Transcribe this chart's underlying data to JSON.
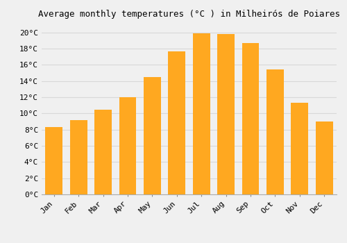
{
  "title": "Average monthly temperatures (°C ) in Milheirós de Poiares",
  "months": [
    "Jan",
    "Feb",
    "Mar",
    "Apr",
    "May",
    "Jun",
    "Jul",
    "Aug",
    "Sep",
    "Oct",
    "Nov",
    "Dec"
  ],
  "temperatures": [
    8.3,
    9.2,
    10.5,
    12.0,
    14.5,
    17.7,
    19.9,
    19.8,
    18.7,
    15.4,
    11.3,
    9.0
  ],
  "bar_color": "#FFA820",
  "ylim": [
    0,
    21
  ],
  "yticks": [
    0,
    2,
    4,
    6,
    8,
    10,
    12,
    14,
    16,
    18,
    20
  ],
  "background_color": "#f0f0f0",
  "grid_color": "#d8d8d8",
  "title_fontsize": 9,
  "tick_fontsize": 8,
  "bar_width": 0.7
}
